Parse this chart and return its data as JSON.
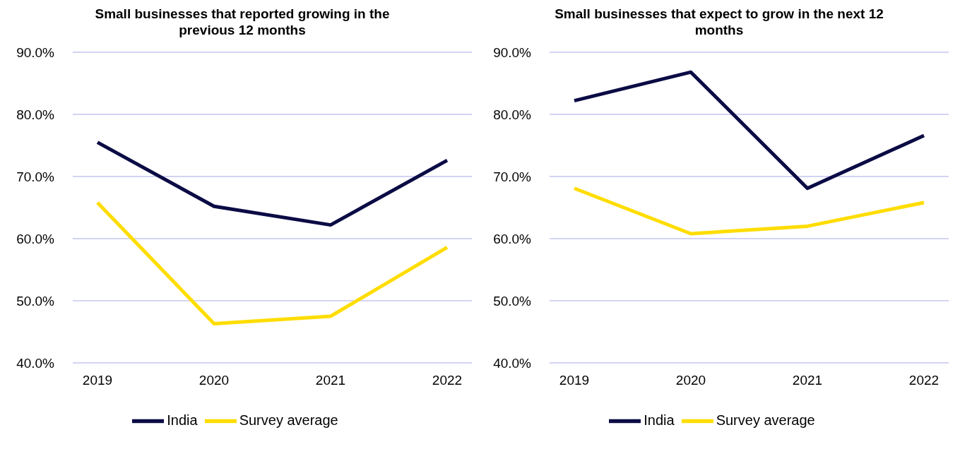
{
  "chart_data": [
    {
      "type": "line",
      "title": "Small businesses that reported growing in the previous 12 months",
      "categories": [
        "2019",
        "2020",
        "2021",
        "2022"
      ],
      "series": [
        {
          "name": "India",
          "color": "#0b0b45",
          "values": [
            75.5,
            65.2,
            62.2,
            72.6
          ]
        },
        {
          "name": "Survey average",
          "color": "#ffdd00",
          "values": [
            65.8,
            46.3,
            47.5,
            58.6
          ]
        }
      ],
      "ylim": [
        40,
        90
      ],
      "yticks": [
        {
          "value": 40,
          "label": "40.0%"
        },
        {
          "value": 50,
          "label": "50.0%"
        },
        {
          "value": 60,
          "label": "60.0%"
        },
        {
          "value": 70,
          "label": "70.0%"
        },
        {
          "value": 80,
          "label": "80.0%"
        },
        {
          "value": 90,
          "label": "90.0%"
        }
      ],
      "grid": "y",
      "legend": "bottom",
      "marker": "none",
      "line_style": "solid"
    },
    {
      "type": "line",
      "title": "Small businesses that expect to grow in the next 12 months",
      "categories": [
        "2019",
        "2020",
        "2021",
        "2022"
      ],
      "series": [
        {
          "name": "India",
          "color": "#0b0b45",
          "values": [
            82.2,
            86.8,
            68.1,
            76.6
          ]
        },
        {
          "name": "Survey average",
          "color": "#ffdd00",
          "values": [
            68.1,
            60.8,
            62.0,
            65.8
          ]
        }
      ],
      "ylim": [
        40,
        90
      ],
      "yticks": [
        {
          "value": 40,
          "label": "40.0%"
        },
        {
          "value": 50,
          "label": "50.0%"
        },
        {
          "value": 60,
          "label": "60.0%"
        },
        {
          "value": 70,
          "label": "70.0%"
        },
        {
          "value": 80,
          "label": "80.0%"
        },
        {
          "value": 90,
          "label": "90.0%"
        }
      ],
      "grid": "y",
      "legend": "bottom",
      "marker": "none",
      "line_style": "solid"
    }
  ]
}
